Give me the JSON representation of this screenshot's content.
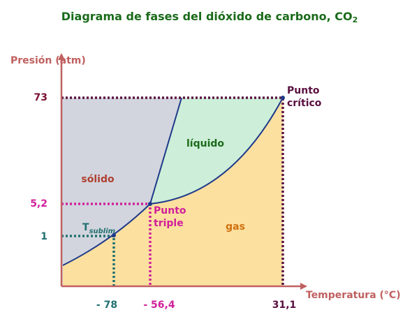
{
  "title": {
    "text": "Diagrama de fases del dióxido de carbono, CO",
    "subscript": "2"
  },
  "axes": {
    "y_label": "Presión (atm)",
    "x_label": "Temperatura (°C)"
  },
  "y_ticks": [
    "73",
    "5,2",
    "1"
  ],
  "x_ticks": [
    "- 78",
    "- 56,4",
    "31,1"
  ],
  "regions": {
    "solid": "sólido",
    "liquid": "líquido",
    "gas": "gas"
  },
  "points": {
    "critical": [
      "Punto",
      "crítico"
    ],
    "triple": [
      "Punto",
      "triple"
    ],
    "sublimation": {
      "text": "T",
      "subscript": "sublim"
    }
  }
}
